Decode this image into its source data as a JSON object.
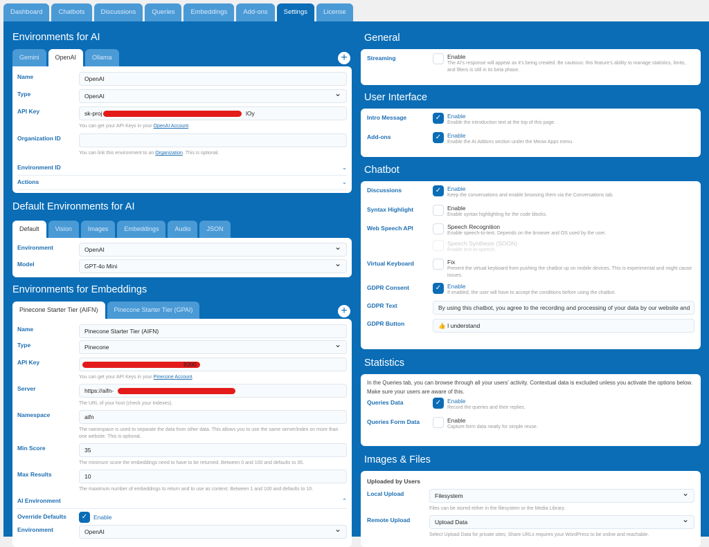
{
  "top_tabs": [
    "Dashboard",
    "Chatbots",
    "Discussions",
    "Queries",
    "Embeddings",
    "Add-ons",
    "Settings",
    "License"
  ],
  "active_top_tab": "Settings",
  "env_ai": {
    "title": "Environments for AI",
    "tabs": [
      "Gemini",
      "OpenAI",
      "Ollama"
    ],
    "active_tab": "OpenAI",
    "name_label": "Name",
    "name": "OpenAI",
    "type_label": "Type",
    "type": "OpenAI",
    "apikey_label": "API Key",
    "apikey_prefix": "sk-proj",
    "apikey_suffix": "lOy",
    "apikey_help": "You can get your API Keys in your ",
    "apikey_link": "OpenAI Account",
    "org_label": "Organization ID",
    "org": "",
    "org_help": "You can link this environment to an ",
    "org_link": "Organization",
    "org_help2": ". This is optional.",
    "envid_label": "Environment ID",
    "actions_label": "Actions"
  },
  "default_env": {
    "title": "Default Environments for AI",
    "tabs": [
      "Default",
      "Vision",
      "Images",
      "Embeddings",
      "Audio",
      "JSON"
    ],
    "active_tab": "Default",
    "env_label": "Environment",
    "env": "OpenAI",
    "model_label": "Model",
    "model": "GPT-4o Mini"
  },
  "env_emb": {
    "title": "Environments for Embeddings",
    "tabs": [
      "Pinecone Starter Tier (AIFN)",
      "Pinecone Starter Tier (GPAI)"
    ],
    "active_tab": "Pinecone Starter Tier (AIFN)",
    "name_label": "Name",
    "name": "Pinecone Starter Tier (AIFN)",
    "type_label": "Type",
    "type": "Pinecone",
    "apikey_label": "API Key",
    "apikey_suffix": "8300",
    "apikey_help": "You can get your API Keys in your ",
    "apikey_link": "Pinecone Account",
    "server_label": "Server",
    "server_prefix": "https://aifn-",
    "server_help": "The URL of your host (check your Indexes).",
    "ns_label": "Namespace",
    "ns": "aifn",
    "ns_help": "The namespace is used to separate the data from other data. This allows you to use the same server/index on more than one website. This is optional.",
    "minscore_label": "Min Score",
    "minscore": "35",
    "minscore_help": "The minimum score the embeddings need to have to be returned. Between 0 and 100 and defaults to 35.",
    "maxres_label": "Max Results",
    "maxres": "10",
    "maxres_help": "The maximum number of embeddings to return and to use as context. Between 1 and 100 and defaults to 10.",
    "aienv_label": "AI Environment",
    "override_label": "Override Defaults",
    "override_text": "Enable",
    "override_checked": true,
    "env_label": "Environment",
    "env": "OpenAI"
  },
  "general": {
    "title": "General",
    "streaming_label": "Streaming",
    "streaming_text": "Enable",
    "streaming_checked": false,
    "streaming_desc": "The AI's response will appear as it's being created. Be cautious: this feature's ability to manage statistics, limits, and filters is still in its beta phase."
  },
  "ui": {
    "title": "User Interface",
    "intro_label": "Intro Message",
    "intro_text": "Enable",
    "intro_desc": "Enable the introduction text at the top of this page.",
    "intro_checked": true,
    "addons_label": "Add-ons",
    "addons_text": "Enable",
    "addons_desc": "Enable the AI Addons section under the Meow Apps menu.",
    "addons_checked": true
  },
  "chatbot": {
    "title": "Chatbot",
    "disc_label": "Discussions",
    "disc_text": "Enable",
    "disc_desc": "Keep the conversations and enable browsing them via the Conversations tab.",
    "disc_checked": true,
    "syntax_label": "Syntax Highlight",
    "syntax_text": "Enable",
    "syntax_desc": "Enable syntax highlighting for the code blocks.",
    "syntax_checked": false,
    "speech_label": "Web Speech API",
    "speech_rec_text": "Speech Recognition",
    "speech_rec_desc": "Enable speech-to-text. Depends on the browser and OS used by the user.",
    "speech_syn_text": "Speech Synthesis (SOON)",
    "speech_syn_desc": "Enable text-to-speech.",
    "vk_label": "Virtual Keyboard",
    "vk_text": "Fix",
    "vk_desc": "Prevent the virtual keyboard from pushing the chatbot up on mobile devices. This is experimental and might cause issues.",
    "vk_checked": false,
    "gdpr_label": "GDPR Consent",
    "gdpr_text": "Enable",
    "gdpr_desc": "If enabled, the user will have to accept the conditions before using the chatbot.",
    "gdpr_checked": true,
    "gdpr_text_label": "GDPR Text",
    "gdpr_text_value": "By using this chatbot, you agree to the recording and processing of your data by our website and",
    "gdpr_button_label": "GDPR Button",
    "gdpr_button_value": "👍 I understand"
  },
  "statistics": {
    "title": "Statistics",
    "intro": "In the Queries tab, you can browse through all your users' activity. Contextual data is excluded unless you activate the options below. Make sure your users are aware of this.",
    "qd_label": "Queries Data",
    "qd_text": "Enable",
    "qd_desc": "Record the queries and their replies.",
    "qd_checked": true,
    "qfd_label": "Queries Form Data",
    "qfd_text": "Enable",
    "qfd_desc": "Capture form data neatly for simple reuse.",
    "qfd_checked": false
  },
  "images": {
    "title": "Images & Files",
    "sub": "Uploaded by Users",
    "local_label": "Local Upload",
    "local": "Filesystem",
    "local_help": "Files can be stored either in the filesystem or the Media Library.",
    "remote_label": "Remote Upload",
    "remote": "Upload Data",
    "remote_help": "Select Upload Data for private sites; Share URLs requires your WordPress to be online and reachable."
  },
  "colors": {
    "panel": "#0a6db6",
    "tab_inactive": "#4a9ad6",
    "label": "#1e6fb3",
    "redaction": "#e31b1b"
  }
}
